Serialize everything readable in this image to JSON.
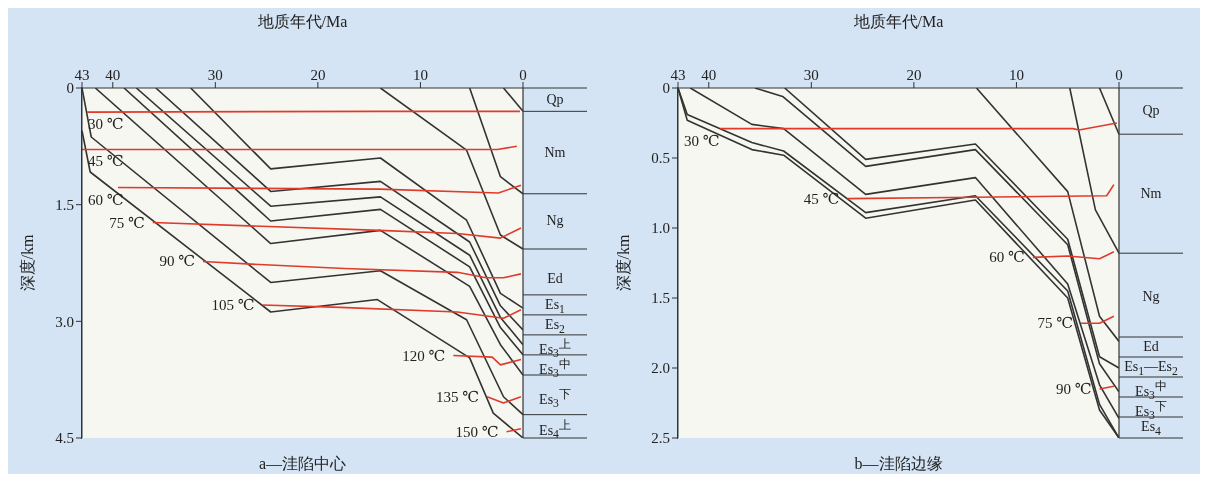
{
  "chart_data": [
    {
      "type": "line",
      "title": "a—洼陷中心",
      "xlabel": "地质年代/Ma",
      "ylabel": "深度/km",
      "xlim": [
        43,
        0
      ],
      "xticks": [
        43,
        40,
        30,
        20,
        10,
        0
      ],
      "ylim": [
        4.5,
        0
      ],
      "yticks": [
        0,
        1.5,
        {
          "value": 3,
          "label": "3.0"
        },
        4.5
      ],
      "marker": "none",
      "series": [
        {
          "color": "#333333",
          "x": [
            1.9,
            0
          ],
          "values": [
            0,
            0.3
          ]
        },
        {
          "color": "#333333",
          "x": [
            5.2,
            2.2,
            0
          ],
          "values": [
            0,
            1.14,
            1.36
          ]
        },
        {
          "color": "#333333",
          "x": [
            13.9,
            5.5,
            2.2,
            0
          ],
          "values": [
            0,
            0.8,
            1.89,
            2.07
          ]
        },
        {
          "color": "#333333",
          "x": [
            32.4,
            24.6,
            13.9,
            5.5,
            2.2,
            0
          ],
          "values": [
            0,
            1.04,
            0.9,
            1.7,
            2.64,
            2.83
          ]
        },
        {
          "color": "#333333",
          "x": [
            35.8,
            24.6,
            13.9,
            5.2,
            2.2,
            0
          ],
          "values": [
            0,
            1.33,
            1.2,
            1.98,
            2.8,
            3.11
          ]
        },
        {
          "color": "#333333",
          "x": [
            37.7,
            24.6,
            13.9,
            5.2,
            2.2,
            0
          ],
          "values": [
            0,
            1.52,
            1.4,
            2.15,
            2.95,
            3.3
          ]
        },
        {
          "color": "#333333",
          "x": [
            38.9,
            24.6,
            13.9,
            5.2,
            2.2,
            0
          ],
          "values": [
            0,
            1.71,
            1.56,
            2.3,
            3.08,
            3.43
          ]
        },
        {
          "color": "#333333",
          "x": [
            41.7,
            24.6,
            13.9,
            5.2,
            2.2,
            0
          ],
          "values": [
            0,
            2.0,
            1.83,
            2.55,
            3.3,
            3.69
          ]
        },
        {
          "color": "#333333",
          "x": [
            43,
            42.1,
            24.6,
            13.9,
            5.5,
            1.9,
            0
          ],
          "values": [
            0,
            0.63,
            2.5,
            2.35,
            2.98,
            3.97,
            4.2
          ]
        },
        {
          "color": "#333333",
          "x": [
            43,
            42.2,
            24.6,
            14.2,
            5.2,
            2.9,
            0
          ],
          "values": [
            0.55,
            1.08,
            2.88,
            2.72,
            3.47,
            4.18,
            4.5
          ]
        },
        {
          "name": "30 ℃",
          "color": "#e03a2a",
          "x": [
            42.5,
            14,
            0.3
          ],
          "values": [
            0.31,
            0.3,
            0.3
          ]
        },
        {
          "name": "45 ℃",
          "color": "#e03a2a",
          "x": [
            43,
            14,
            2.5,
            0.6
          ],
          "values": [
            0.79,
            0.79,
            0.79,
            0.75
          ]
        },
        {
          "name": "60 ℃",
          "color": "#e03a2a",
          "x": [
            39.5,
            14,
            2.4,
            0.2
          ],
          "values": [
            1.28,
            1.3,
            1.35,
            1.25
          ]
        },
        {
          "name": "75 ℃",
          "color": "#e03a2a",
          "x": [
            36.1,
            14,
            6.4,
            2.2,
            0.2
          ],
          "values": [
            1.73,
            1.83,
            1.87,
            1.93,
            1.8
          ]
        },
        {
          "name": "90 ℃",
          "color": "#e03a2a",
          "x": [
            31.2,
            25.7,
            17.4,
            6.4,
            3.6,
            1.9,
            0.2
          ],
          "values": [
            2.23,
            2.27,
            2.32,
            2.37,
            2.44,
            2.44,
            2.39
          ]
        },
        {
          "name": "105 ℃",
          "color": "#e03a2a",
          "x": [
            25.4,
            17.8,
            6.4,
            1.9,
            0.2
          ],
          "values": [
            2.79,
            2.82,
            2.88,
            2.96,
            2.85
          ]
        },
        {
          "name": "120 ℃",
          "color": "#e03a2a",
          "x": [
            6.8,
            3.0,
            2.2,
            0.2
          ],
          "values": [
            3.44,
            3.46,
            3.56,
            3.49
          ]
        },
        {
          "name": "135 ℃",
          "color": "#e03a2a",
          "x": [
            3.5,
            1.9,
            0.2
          ],
          "values": [
            3.97,
            4.05,
            3.97
          ]
        },
        {
          "name": "150 ℃",
          "color": "#e03a2a",
          "x": [
            1.6,
            0.2
          ],
          "values": [
            4.42,
            4.38
          ]
        }
      ],
      "annotations": [
        "Qp",
        "Nm",
        "Ng",
        "Ed",
        "Es$_{1}$",
        "Es$_{2}$",
        "Es$_{3}$$^{上}$",
        "Es$_{3}$$^{中}$",
        "Es$_{3}$$^{下}$",
        "Es$_{4}$$^{上}$"
      ]
    },
    {
      "type": "line",
      "title": "b—洼陷边缘",
      "xlabel": "地质年代/Ma",
      "ylabel": "深度/km",
      "xlim": [
        43,
        0
      ],
      "xticks": [
        43,
        40,
        30,
        20,
        10,
        0
      ],
      "ylim": [
        2.5,
        0
      ],
      "yticks": [
        0,
        0.5,
        {
          "value": 1,
          "label": "1.0"
        },
        1.5,
        {
          "value": 2,
          "label": "2.0"
        },
        2.5
      ],
      "marker": "none",
      "series": [
        {
          "color": "#333333",
          "x": [
            1.9,
            0
          ],
          "values": [
            0,
            0.33
          ]
        },
        {
          "color": "#333333",
          "x": [
            4.8,
            2.3,
            0
          ],
          "values": [
            0,
            0.87,
            1.18
          ]
        },
        {
          "color": "#333333",
          "x": [
            13.9,
            5.0,
            1.9,
            0
          ],
          "values": [
            0,
            0.74,
            1.63,
            1.81
          ]
        },
        {
          "color": "#333333",
          "x": [
            32.6,
            24.7,
            14.0,
            5.0,
            1.9,
            0
          ],
          "values": [
            0,
            0.51,
            0.4,
            1.08,
            1.92,
            2.0
          ]
        },
        {
          "color": "#333333",
          "x": [
            35.5,
            32.8,
            24.7,
            14.0,
            5.0,
            1.9,
            0
          ],
          "values": [
            0,
            0.06,
            0.56,
            0.44,
            1.12,
            1.97,
            2.17
          ]
        },
        {
          "color": "#333333",
          "x": [
            41.8,
            35.8,
            32.7,
            24.7,
            14.0,
            5.0,
            1.9,
            0
          ],
          "values": [
            0,
            0.26,
            0.29,
            0.76,
            0.64,
            1.4,
            2.12,
            2.36
          ]
        },
        {
          "color": "#333333",
          "x": [
            43,
            42.1,
            35.8,
            32.7,
            24.7,
            14.0,
            5.0,
            1.9,
            0
          ],
          "values": [
            0,
            0.19,
            0.39,
            0.45,
            0.89,
            0.77,
            1.45,
            2.26,
            2.5
          ]
        },
        {
          "color": "#333333",
          "x": [
            43,
            42.1,
            35.8,
            32.7,
            24.7,
            14.0,
            5.0,
            1.9,
            0
          ],
          "values": [
            0,
            0.23,
            0.44,
            0.48,
            0.93,
            0.8,
            1.5,
            2.3,
            2.5
          ]
        },
        {
          "name": "30 ℃",
          "color": "#e03a2a",
          "x": [
            38.9,
            4.5,
            3.9,
            0.2
          ],
          "values": [
            0.29,
            0.29,
            0.3,
            0.25
          ]
        },
        {
          "name": "45 ℃",
          "color": "#e03a2a",
          "x": [
            26.5,
            14,
            1.2,
            0.5
          ],
          "values": [
            0.79,
            0.78,
            0.77,
            0.69
          ]
        },
        {
          "name": "60 ℃",
          "color": "#e03a2a",
          "x": [
            8.4,
            5.0,
            1.9,
            0.5
          ],
          "values": [
            1.21,
            1.2,
            1.22,
            1.17
          ]
        },
        {
          "name": "75 ℃",
          "color": "#e03a2a",
          "x": [
            3.7,
            1.9,
            0.5
          ],
          "values": [
            1.68,
            1.68,
            1.63
          ]
        },
        {
          "name": "90 ℃",
          "color": "#e03a2a",
          "x": [
            1.9,
            0.5
          ],
          "values": [
            2.15,
            2.13
          ]
        }
      ],
      "annotations": [
        "Qp",
        "Nm",
        "Ng",
        "Ed",
        "Es$_{1}$—Es$_{2}$",
        "Es$_{3}$$^{中}$",
        "Es$_{3}$$^{下}$",
        "Es$_{4}$"
      ]
    }
  ]
}
